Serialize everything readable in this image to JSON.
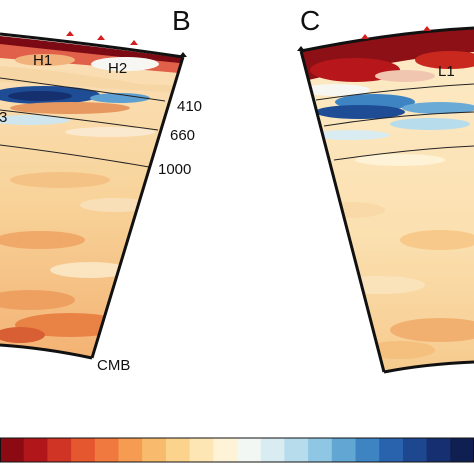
{
  "panels": [
    {
      "id": "B",
      "letter": "B",
      "anomalies": [
        "H1",
        "H2",
        "3"
      ],
      "depth_labels": [
        "410",
        "660",
        "1000",
        "CMB"
      ]
    },
    {
      "id": "C",
      "letter": "C",
      "anomalies": [
        "L1"
      ]
    }
  ],
  "colorbar": {
    "colors": [
      "#8c0a12",
      "#b0161a",
      "#cf3424",
      "#e5572e",
      "#f0793f",
      "#f59b52",
      "#f8ba6d",
      "#fbd38c",
      "#fde6b3",
      "#fef3d6",
      "#f3f7f3",
      "#d8ecf1",
      "#b7dcec",
      "#8ec6e3",
      "#62a6d4",
      "#3f84c2",
      "#2a63ad",
      "#1d478f",
      "#162f70",
      "#0f1f52"
    ]
  }
}
